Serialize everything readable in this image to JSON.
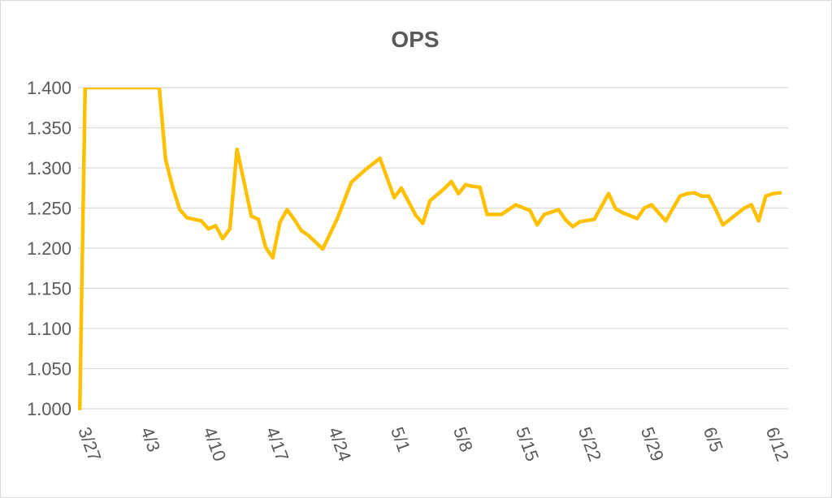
{
  "chart_data": {
    "type": "line",
    "title": "OPS",
    "xlabel": "",
    "ylabel": "",
    "ylim": [
      1.0,
      1.4
    ],
    "yticks": [
      "1.000",
      "1.050",
      "1.100",
      "1.150",
      "1.200",
      "1.250",
      "1.300",
      "1.350",
      "1.400"
    ],
    "xticks": [
      {
        "label": "3/27",
        "day": 0
      },
      {
        "label": "4/3",
        "day": 7
      },
      {
        "label": "4/10",
        "day": 14
      },
      {
        "label": "4/17",
        "day": 21
      },
      {
        "label": "4/24",
        "day": 28
      },
      {
        "label": "5/1",
        "day": 35
      },
      {
        "label": "5/8",
        "day": 42
      },
      {
        "label": "5/15",
        "day": 49
      },
      {
        "label": "5/22",
        "day": 56
      },
      {
        "label": "5/29",
        "day": 63
      },
      {
        "label": "6/5",
        "day": 70
      },
      {
        "label": "6/12",
        "day": 77
      }
    ],
    "grid": true,
    "legend": "none",
    "series": [
      {
        "name": "OPS",
        "color": "#FFC000",
        "x": [
          0.2,
          0.8,
          9.1,
          9.8,
          10.6,
          11.4,
          12.2,
          13.8,
          14.6,
          15.4,
          16.2,
          17.0,
          17.8,
          18.6,
          19.4,
          20.2,
          21.0,
          21.8,
          22.6,
          23.4,
          24.2,
          25.0,
          25.8,
          27.4,
          29.0,
          30.6,
          31.4,
          32.2,
          33.8,
          35.4,
          36.2,
          37.8,
          38.6,
          39.4,
          41.0,
          41.8,
          42.6,
          43.4,
          44.2,
          45.0,
          45.8,
          47.4,
          48.2,
          49.0,
          50.6,
          51.4,
          52.2,
          53.8,
          54.6,
          55.4,
          56.2,
          57.8,
          59.4,
          60.2,
          61.0,
          62.6,
          63.4,
          64.2,
          65.8,
          67.4,
          68.2,
          69.0,
          69.8,
          70.6,
          71.4,
          72.2,
          74.6,
          75.4,
          76.2,
          77.0,
          77.8,
          78.6
        ],
        "values": [
          1.0,
          1.4,
          1.4,
          1.311,
          1.276,
          1.248,
          1.238,
          1.234,
          1.224,
          1.228,
          1.212,
          1.224,
          1.323,
          1.282,
          1.24,
          1.236,
          1.201,
          1.188,
          1.232,
          1.248,
          1.236,
          1.222,
          1.216,
          1.199,
          1.236,
          1.282,
          1.29,
          1.298,
          1.312,
          1.263,
          1.275,
          1.241,
          1.231,
          1.259,
          1.274,
          1.283,
          1.268,
          1.279,
          1.277,
          1.276,
          1.242,
          1.242,
          1.248,
          1.254,
          1.247,
          1.229,
          1.242,
          1.248,
          1.235,
          1.227,
          1.233,
          1.236,
          1.268,
          1.249,
          1.244,
          1.237,
          1.25,
          1.254,
          1.234,
          1.265,
          1.268,
          1.269,
          1.265,
          1.265,
          1.248,
          1.229,
          1.25,
          1.254,
          1.234,
          1.265,
          1.268,
          1.269
        ]
      }
    ]
  }
}
